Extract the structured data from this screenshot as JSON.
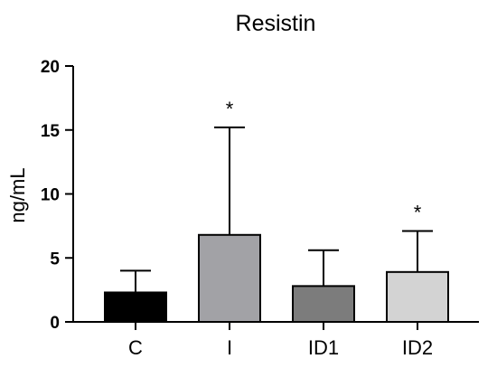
{
  "chart_data": {
    "type": "bar",
    "title": "Resistin",
    "ylabel": "ng/mL",
    "xlabel": "",
    "ylim": [
      0,
      20
    ],
    "yticks": [
      0,
      5,
      10,
      15,
      20
    ],
    "yticks_text": [
      "0",
      "5",
      "10",
      "15",
      "20"
    ],
    "categories": [
      "C",
      "I",
      "ID1",
      "ID2"
    ],
    "values": [
      2.3,
      6.8,
      2.8,
      3.9
    ],
    "error_upper": [
      4.0,
      15.2,
      5.6,
      7.1
    ],
    "annotations": [
      "",
      "*",
      "",
      "*"
    ],
    "colors": [
      "#000000",
      "#a2a2a6",
      "#7c7c7c",
      "#d3d3d3"
    ],
    "grid": false,
    "legend": "none"
  }
}
